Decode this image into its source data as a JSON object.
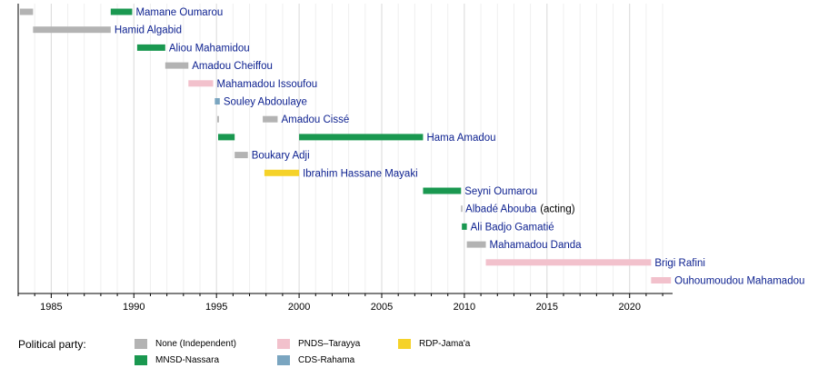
{
  "chart_data": {
    "type": "timeline",
    "x_range": [
      1983.0,
      2022.6
    ],
    "ticks": [
      1985,
      1990,
      1995,
      2000,
      2005,
      2010,
      2015,
      2020
    ],
    "parties": [
      {
        "key": "none",
        "name": "None (Independent)",
        "color": "#b3b3b3"
      },
      {
        "key": "mnsd",
        "name": "MNSD-Nassara",
        "color": "#1a9850"
      },
      {
        "key": "pnds",
        "name": "PNDS–Tarayya",
        "color": "#f2c1cc"
      },
      {
        "key": "cds",
        "name": "CDS-Rahama",
        "color": "#7aa5c0"
      },
      {
        "key": "rdp",
        "name": "RDP-Jama'a",
        "color": "#f5d229"
      }
    ],
    "rows": [
      {
        "name": "Mamane Oumarou",
        "terms": [
          {
            "start": 1983.1,
            "end": 1983.9,
            "party": "none"
          },
          {
            "start": 1988.6,
            "end": 1989.9,
            "party": "mnsd"
          }
        ]
      },
      {
        "name": "Hamid Algabid",
        "terms": [
          {
            "start": 1983.9,
            "end": 1988.6,
            "party": "none"
          }
        ]
      },
      {
        "name": "Aliou Mahamidou",
        "terms": [
          {
            "start": 1990.2,
            "end": 1991.9,
            "party": "mnsd"
          }
        ]
      },
      {
        "name": "Amadou Cheiffou",
        "terms": [
          {
            "start": 1991.9,
            "end": 1993.3,
            "party": "none"
          }
        ]
      },
      {
        "name": "Mahamadou Issoufou",
        "terms": [
          {
            "start": 1993.3,
            "end": 1994.8,
            "party": "pnds"
          }
        ]
      },
      {
        "name": "Souley Abdoulaye",
        "terms": [
          {
            "start": 1994.9,
            "end": 1995.2,
            "party": "cds"
          }
        ]
      },
      {
        "name": "Amadou Cissé",
        "terms": [
          {
            "start": 1995.05,
            "end": 1995.15,
            "party": "none"
          },
          {
            "start": 1997.8,
            "end": 1998.7,
            "party": "none"
          }
        ]
      },
      {
        "name": "Hama Amadou",
        "terms": [
          {
            "start": 1995.1,
            "end": 1996.1,
            "party": "mnsd"
          },
          {
            "start": 2000.0,
            "end": 2007.5,
            "party": "mnsd"
          }
        ]
      },
      {
        "name": "Boukary Adji",
        "terms": [
          {
            "start": 1996.1,
            "end": 1996.9,
            "party": "none"
          }
        ]
      },
      {
        "name": "Ibrahim Hassane Mayaki",
        "terms": [
          {
            "start": 1997.9,
            "end": 2000.0,
            "party": "rdp"
          }
        ]
      },
      {
        "name": "Seyni Oumarou",
        "terms": [
          {
            "start": 2007.5,
            "end": 2009.8,
            "party": "mnsd"
          }
        ]
      },
      {
        "name": "Albadé Abouba",
        "note": "(acting)",
        "terms": [
          {
            "start": 2009.8,
            "end": 2009.85,
            "party": "none"
          }
        ]
      },
      {
        "name": "Ali Badjo Gamatié",
        "terms": [
          {
            "start": 2009.85,
            "end": 2010.15,
            "party": "mnsd"
          }
        ]
      },
      {
        "name": "Mahamadou Danda",
        "terms": [
          {
            "start": 2010.15,
            "end": 2011.3,
            "party": "none"
          }
        ]
      },
      {
        "name": "Brigi Rafini",
        "terms": [
          {
            "start": 2011.3,
            "end": 2021.3,
            "party": "pnds"
          }
        ]
      },
      {
        "name": "Ouhoumoudou Mahamadou",
        "terms": [
          {
            "start": 2021.3,
            "end": 2022.5,
            "party": "pnds"
          }
        ]
      }
    ],
    "legend_title": "Political party:",
    "legend_placement": "bottom-left"
  }
}
